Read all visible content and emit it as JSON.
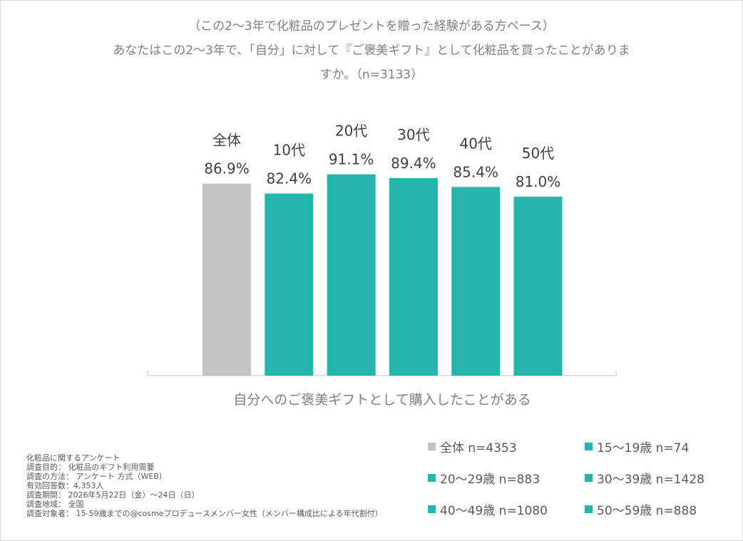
{
  "question": {
    "line1": "（この2～3年で化粧品のプレゼントを贈った経験がある方ベース）",
    "line2": "あなたはこの2～3年で、「自分」に対して『ご褒美ギフト』として化粧品を買ったことがありま",
    "line3": "すか。（n=3133）"
  },
  "chart_data": {
    "type": "bar",
    "categories": [
      "全体",
      "10代",
      "20代",
      "30代",
      "40代",
      "50代"
    ],
    "values": [
      86.9,
      82.4,
      91.1,
      89.4,
      85.4,
      81.0
    ],
    "value_labels": [
      "86.9%",
      "82.4%",
      "91.1%",
      "89.4%",
      "85.4%",
      "81.0%"
    ],
    "xlabel": "自分へのご褒美ギフトとして購入したことがある",
    "ylim": [
      0,
      100
    ],
    "grid": false,
    "bar_colors": [
      "#c6c4c0",
      "#24b5ac",
      "#24b5ac",
      "#24b5ac",
      "#24b5ac",
      "#24b5ac"
    ],
    "legend": [
      {
        "label": "全体 n=4353",
        "color": "#c6c4c0"
      },
      {
        "label": "15～19歳 n=74",
        "color": "#24b5ac"
      },
      {
        "label": "20～29歳 n=883",
        "color": "#24b5ac"
      },
      {
        "label": "30～39歳 n=1428",
        "color": "#24b5ac"
      },
      {
        "label": "40～49歳 n=1080",
        "color": "#24b5ac"
      },
      {
        "label": "50～59歳 n=888",
        "color": "#24b5ac"
      }
    ],
    "legend_placement": "bottom-right"
  },
  "notes": [
    "化粧品に関するアンケート",
    "調査目的： 化粧品のギフト利用需要",
    "調査の方法： アンケート 方式（WEB）",
    "有効回答数：4,353人",
    "調査期間： 2026年5月22日（金）～24日（日）",
    "調査地域： 全国",
    "調査対象者： 15-59歳までの@cosmeプロデュースメンバー女性（メンバー構成比による年代割付）"
  ],
  "colors": {
    "gray": "#c6c4c0",
    "teal": "#24b5ac",
    "text_dark": "#404040",
    "text_gray": "#7f7f7f"
  }
}
